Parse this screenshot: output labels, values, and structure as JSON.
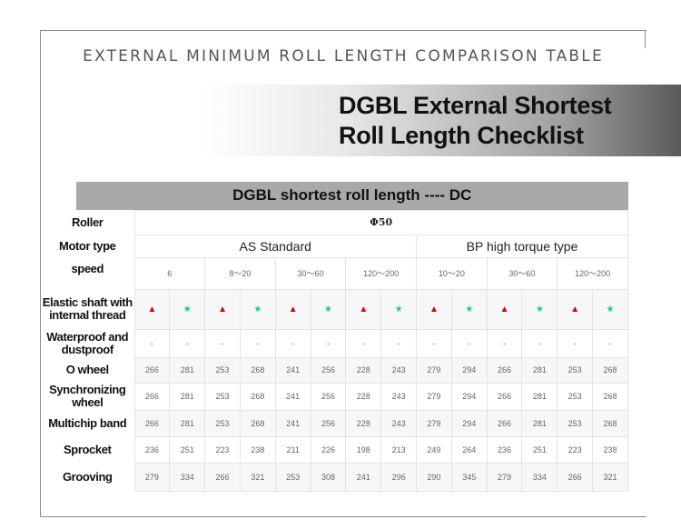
{
  "top_title": "EXTERNAL MINIMUM ROLL LENGTH COMPARISON TABLE",
  "banner": {
    "line1": "DGBL External Shortest",
    "line2": "Roll Length Checklist"
  },
  "table": {
    "title": "DGBL shortest roll length ---- DC",
    "roller": {
      "label": "Roller",
      "value": "Φ50"
    },
    "motor": {
      "label": "Motor type",
      "groups": [
        "AS Standard",
        "BP high torque type"
      ]
    },
    "speed": {
      "label": "speed",
      "values": [
        "6",
        "8～20",
        "30～60",
        "120～200",
        "10～20",
        "30～60",
        "120～200"
      ]
    },
    "elastic": {
      "label": "Elastic shaft with internal thread",
      "marks": [
        "▲",
        "★",
        "▲",
        "★",
        "▲",
        "★",
        "▲",
        "★",
        "▲",
        "★",
        "▲",
        "★",
        "▲",
        "★"
      ]
    },
    "waterproof": {
      "label": "Waterproof and dustproof",
      "values": [
        "-",
        "-",
        "-",
        "-",
        "-",
        "-",
        "-",
        "-",
        "-",
        "-",
        "-",
        "-",
        "-",
        "-"
      ]
    },
    "rows": [
      {
        "label": "O wheel",
        "values": [
          "266",
          "281",
          "253",
          "268",
          "241",
          "256",
          "228",
          "243",
          "279",
          "294",
          "266",
          "281",
          "253",
          "268"
        ]
      },
      {
        "label": "Synchronizing wheel",
        "values": [
          "266",
          "281",
          "253",
          "268",
          "241",
          "256",
          "228",
          "243",
          "279",
          "294",
          "266",
          "281",
          "253",
          "268"
        ]
      },
      {
        "label": "Multichip band",
        "values": [
          "266",
          "281",
          "253",
          "268",
          "241",
          "256",
          "228",
          "243",
          "279",
          "294",
          "266",
          "281",
          "253",
          "268"
        ]
      },
      {
        "label": "Sprocket",
        "values": [
          "236",
          "251",
          "223",
          "238",
          "211",
          "226",
          "198",
          "213",
          "249",
          "264",
          "236",
          "251",
          "223",
          "238"
        ]
      },
      {
        "label": "Grooving",
        "values": [
          "279",
          "334",
          "266",
          "321",
          "253",
          "308",
          "241",
          "296",
          "290",
          "345",
          "279",
          "334",
          "266",
          "321"
        ]
      }
    ]
  },
  "colors": {
    "triangle": "#e00000",
    "star": "#18d07a",
    "header_bg": "#a9a9a9"
  }
}
